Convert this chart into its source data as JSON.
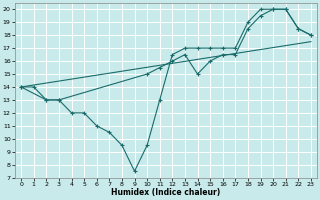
{
  "xlabel": "Humidex (Indice chaleur)",
  "bg_color": "#c8eaea",
  "grid_color": "#ffffff",
  "line_color": "#1a6b6b",
  "xlim": [
    -0.5,
    23.5
  ],
  "ylim": [
    7,
    20.5
  ],
  "xticks": [
    0,
    1,
    2,
    3,
    4,
    5,
    6,
    7,
    8,
    9,
    10,
    11,
    12,
    13,
    14,
    15,
    16,
    17,
    18,
    19,
    20,
    21,
    22,
    23
  ],
  "yticks": [
    7,
    8,
    9,
    10,
    11,
    12,
    13,
    14,
    15,
    16,
    17,
    18,
    19,
    20
  ],
  "line1_x": [
    0,
    1,
    2,
    3,
    4,
    5,
    6,
    7,
    8,
    9,
    10,
    11,
    12,
    13,
    14,
    15,
    16,
    17,
    18,
    19,
    20,
    21,
    22,
    23
  ],
  "line1_y": [
    14,
    14,
    13,
    13,
    12,
    12,
    11,
    10.5,
    9.5,
    7.5,
    9.5,
    13,
    16.5,
    17,
    17,
    17,
    17,
    17,
    19,
    20,
    20,
    20,
    18.5,
    18
  ],
  "line2_x": [
    0,
    2,
    3,
    10,
    11,
    12,
    13,
    14,
    15,
    16,
    17,
    18,
    19,
    20,
    21,
    22,
    23
  ],
  "line2_y": [
    14,
    13,
    13,
    15,
    15.5,
    16,
    16.5,
    15,
    16,
    16.5,
    16.5,
    18.5,
    19.5,
    20,
    20,
    18.5,
    18
  ],
  "line3_x": [
    0,
    23
  ],
  "line3_y": [
    14,
    17.5
  ]
}
